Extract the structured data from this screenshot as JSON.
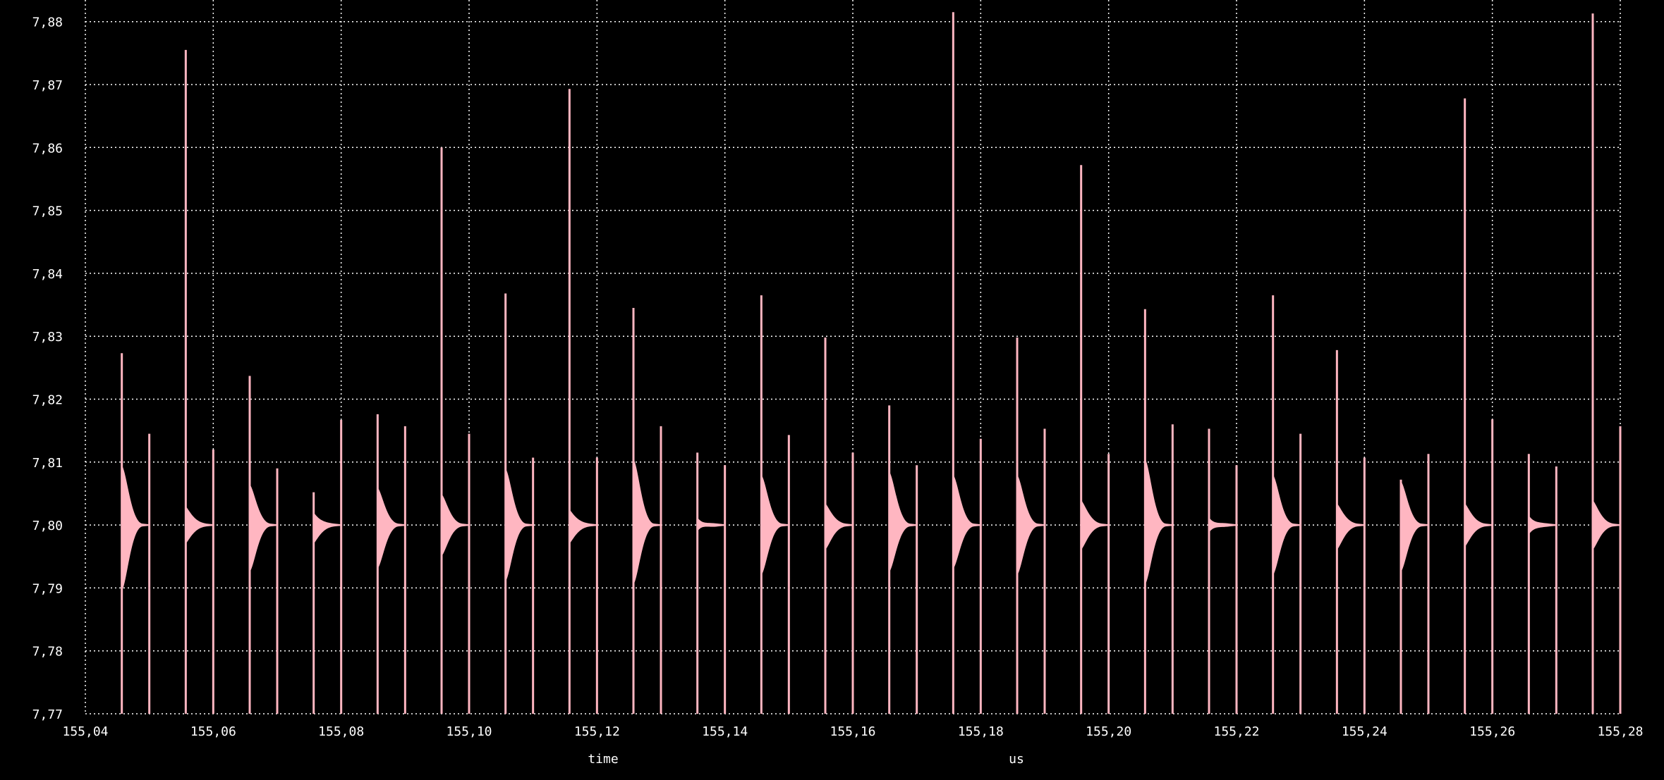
{
  "chart_data": {
    "type": "line",
    "xlabel": "time",
    "xunit": "us",
    "ylabel": "",
    "title": "",
    "xlim": [
      155.04,
      155.28
    ],
    "ylim": [
      7.77,
      7.8815
    ],
    "grid": true,
    "x_ticks": [
      "155,04",
      "155,06",
      "155,08",
      "155,10",
      "155,12",
      "155,14",
      "155,16",
      "155,18",
      "155,20",
      "155,22",
      "155,24",
      "155,26",
      "155,28"
    ],
    "y_ticks": [
      "7,77",
      "7,78",
      "7,79",
      "7,80",
      "7,81",
      "7,82",
      "7,83",
      "7,84",
      "7,85",
      "7,86",
      "7,87",
      "7,88"
    ],
    "series": [
      {
        "color": "#ffb6c1",
        "baseline": 7.8,
        "pulses": [
          {
            "t": 155.0457,
            "hi": 7.8273,
            "env_top": 7.8095,
            "env_bot": 7.7895,
            "t2": 155.05,
            "hi2": 7.8145
          },
          {
            "t": 155.0557,
            "hi": 7.8755,
            "env_top": 7.803,
            "env_bot": 7.797,
            "t2": 155.06,
            "hi2": 7.812
          },
          {
            "t": 155.0657,
            "hi": 7.8237,
            "env_top": 7.8065,
            "env_bot": 7.7925,
            "t2": 155.07,
            "hi2": 7.809
          },
          {
            "t": 155.0757,
            "hi": 7.8052,
            "env_top": 7.802,
            "env_bot": 7.797,
            "t2": 155.08,
            "hi2": 7.8167
          },
          {
            "t": 155.0857,
            "hi": 7.8176,
            "env_top": 7.806,
            "env_bot": 7.793,
            "t2": 155.09,
            "hi2": 7.8157
          },
          {
            "t": 155.0957,
            "hi": 7.86,
            "env_top": 7.805,
            "env_bot": 7.795,
            "t2": 155.1,
            "hi2": 7.8145
          },
          {
            "t": 155.1057,
            "hi": 7.8368,
            "env_top": 7.809,
            "env_bot": 7.791,
            "t2": 155.11,
            "hi2": 7.8107
          },
          {
            "t": 155.1157,
            "hi": 7.8693,
            "env_top": 7.8025,
            "env_bot": 7.797,
            "t2": 155.12,
            "hi2": 7.8107
          },
          {
            "t": 155.1257,
            "hi": 7.8345,
            "env_top": 7.8105,
            "env_bot": 7.7905,
            "t2": 155.13,
            "hi2": 7.8157
          },
          {
            "t": 155.1357,
            "hi": 7.8115,
            "env_top": 7.8012,
            "env_bot": 7.799,
            "t2": 155.14,
            "hi2": 7.8095
          },
          {
            "t": 155.1457,
            "hi": 7.8365,
            "env_top": 7.808,
            "env_bot": 7.792,
            "t2": 155.15,
            "hi2": 7.8143
          },
          {
            "t": 155.1557,
            "hi": 7.8298,
            "env_top": 7.8035,
            "env_bot": 7.796,
            "t2": 155.16,
            "hi2": 7.8115
          },
          {
            "t": 155.1657,
            "hi": 7.819,
            "env_top": 7.8085,
            "env_bot": 7.7925,
            "t2": 155.17,
            "hi2": 7.8095
          },
          {
            "t": 155.1757,
            "hi": 7.8815,
            "env_top": 7.808,
            "env_bot": 7.793,
            "t2": 155.18,
            "hi2": 7.8137
          },
          {
            "t": 155.1857,
            "hi": 7.8298,
            "env_top": 7.808,
            "env_bot": 7.792,
            "t2": 155.19,
            "hi2": 7.8153
          },
          {
            "t": 155.1957,
            "hi": 7.8572,
            "env_top": 7.804,
            "env_bot": 7.796,
            "t2": 155.2,
            "hi2": 7.8113
          },
          {
            "t": 155.2057,
            "hi": 7.8343,
            "env_top": 7.8105,
            "env_bot": 7.7905,
            "t2": 155.21,
            "hi2": 7.816
          },
          {
            "t": 155.2157,
            "hi": 7.8153,
            "env_top": 7.8012,
            "env_bot": 7.7988,
            "t2": 155.22,
            "hi2": 7.8095
          },
          {
            "t": 155.2257,
            "hi": 7.8365,
            "env_top": 7.808,
            "env_bot": 7.792,
            "t2": 155.23,
            "hi2": 7.8145
          },
          {
            "t": 155.2357,
            "hi": 7.8278,
            "env_top": 7.8035,
            "env_bot": 7.796,
            "t2": 155.24,
            "hi2": 7.8107
          },
          {
            "t": 155.2457,
            "hi": 7.8072,
            "env_top": 7.807,
            "env_bot": 7.7925,
            "t2": 155.25,
            "hi2": 7.8113
          },
          {
            "t": 155.2557,
            "hi": 7.8678,
            "env_top": 7.8035,
            "env_bot": 7.7965,
            "t2": 155.26,
            "hi2": 7.8168
          },
          {
            "t": 155.2657,
            "hi": 7.8113,
            "env_top": 7.8015,
            "env_bot": 7.7985,
            "t2": 155.27,
            "hi2": 7.8093
          },
          {
            "t": 155.2757,
            "hi": 7.8813,
            "env_top": 7.804,
            "env_bot": 7.796,
            "t2": 155.28,
            "hi2": 7.8157
          }
        ]
      }
    ]
  },
  "style": {
    "background": "#000000",
    "grid_color": "#ffffff",
    "text_color": "#ffffff"
  }
}
